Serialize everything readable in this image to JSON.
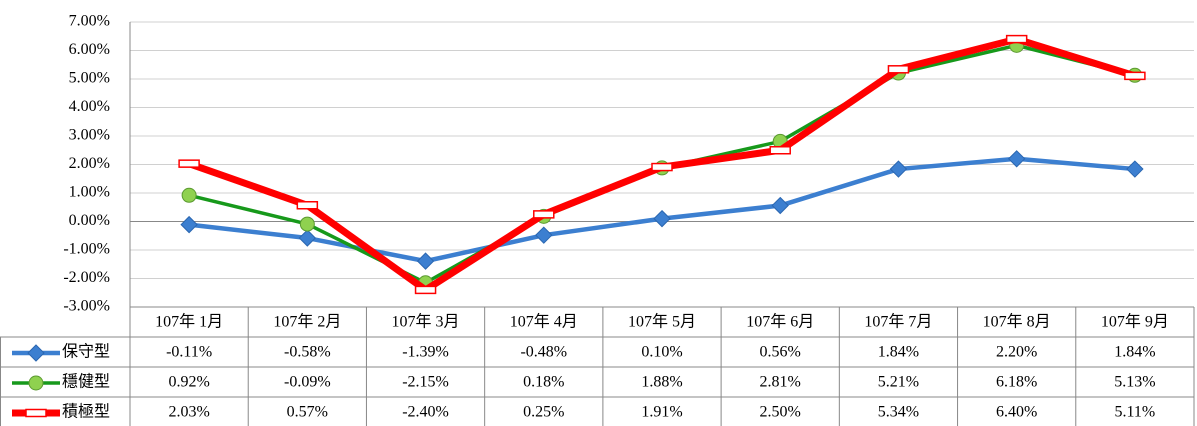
{
  "chart_data": {
    "type": "line",
    "categories": [
      "107年 1月",
      "107年 2月",
      "107年 3月",
      "107年 4月",
      "107年 5月",
      "107年 6月",
      "107年 7月",
      "107年 8月",
      "107年 9月"
    ],
    "series": [
      {
        "name": "保守型",
        "color": "#3c7fd0",
        "marker": "diamond",
        "values": [
          -0.11,
          -0.58,
          -1.39,
          -0.48,
          0.1,
          0.56,
          1.84,
          2.2,
          1.84
        ],
        "value_labels": [
          "-0.11%",
          "-0.58%",
          "-1.39%",
          "-0.48%",
          "0.10%",
          "0.56%",
          "1.84%",
          "2.20%",
          "1.84%"
        ]
      },
      {
        "name": "穩健型",
        "color": "#17991b",
        "marker": "circle",
        "values": [
          0.92,
          -0.09,
          -2.15,
          0.18,
          1.88,
          2.81,
          5.21,
          6.18,
          5.13
        ],
        "value_labels": [
          "0.92%",
          "-0.09%",
          "-2.15%",
          "0.18%",
          "1.88%",
          "2.81%",
          "5.21%",
          "6.18%",
          "5.13%"
        ]
      },
      {
        "name": "積極型",
        "color": "#ff0000",
        "marker": "rect",
        "values": [
          2.03,
          0.57,
          -2.4,
          0.25,
          1.91,
          2.5,
          5.34,
          6.4,
          5.11
        ],
        "value_labels": [
          "2.03%",
          "0.57%",
          "-2.40%",
          "0.25%",
          "1.91%",
          "2.50%",
          "5.34%",
          "6.40%",
          "5.11%"
        ]
      }
    ],
    "ylim": [
      -3,
      7
    ],
    "yticks": [
      {
        "value": -3,
        "label": "-3.00%"
      },
      {
        "value": -2,
        "label": "-2.00%"
      },
      {
        "value": -1,
        "label": "-1.00%"
      },
      {
        "value": 0,
        "label": "0.00%"
      },
      {
        "value": 1,
        "label": "1.00%"
      },
      {
        "value": 2,
        "label": "2.00%"
      },
      {
        "value": 3,
        "label": "3.00%"
      },
      {
        "value": 4,
        "label": "4.00%"
      },
      {
        "value": 5,
        "label": "5.00%"
      },
      {
        "value": 6,
        "label": "6.00%"
      },
      {
        "value": 7,
        "label": "7.00%"
      }
    ],
    "grid": true
  }
}
